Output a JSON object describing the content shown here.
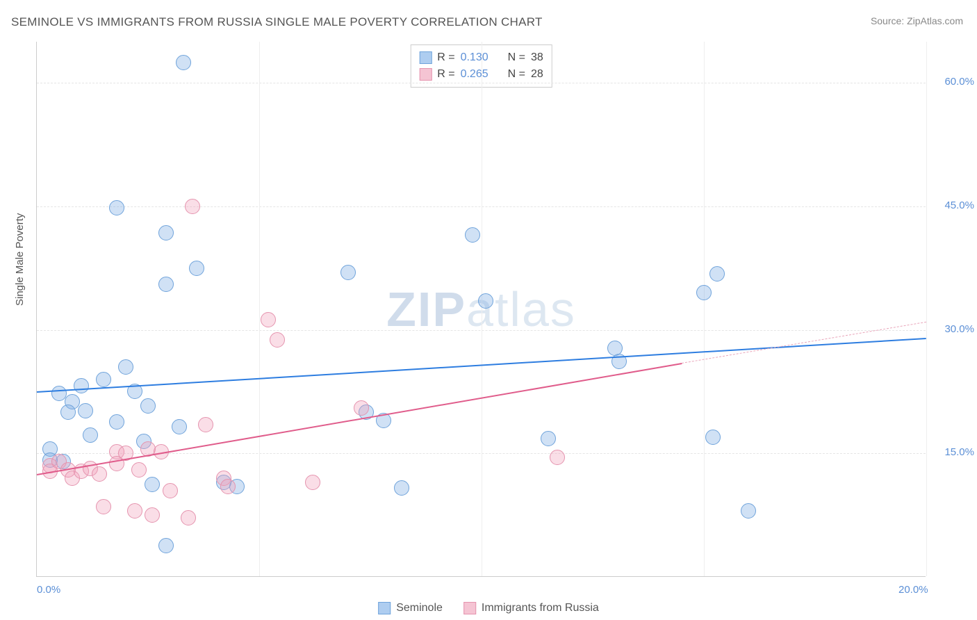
{
  "title": "SEMINOLE VS IMMIGRANTS FROM RUSSIA SINGLE MALE POVERTY CORRELATION CHART",
  "source": "Source: ZipAtlas.com",
  "y_axis_label": "Single Male Poverty",
  "watermark": {
    "bold": "ZIP",
    "rest": "atlas"
  },
  "chart": {
    "type": "scatter",
    "xlim": [
      0,
      20
    ],
    "ylim": [
      0,
      65
    ],
    "xticks": [
      {
        "value": 0,
        "label": "0.0%"
      },
      {
        "value": 20,
        "label": "20.0%"
      }
    ],
    "yticks": [
      {
        "value": 15,
        "label": "15.0%"
      },
      {
        "value": 30,
        "label": "30.0%"
      },
      {
        "value": 45,
        "label": "45.0%"
      },
      {
        "value": 60,
        "label": "60.0%"
      }
    ],
    "vgrid_steps": 5,
    "grid_color": "#e8e8e8",
    "background_color": "#ffffff",
    "marker_radius": 11,
    "marker_stroke_width": 1.5,
    "series": [
      {
        "name": "Seminole",
        "color_fill": "rgba(120, 170, 225, 0.35)",
        "color_stroke": "#6fa3db",
        "swatch_fill": "#aecdf0",
        "swatch_stroke": "#6fa3db",
        "R": "0.130",
        "N": "38",
        "trend": {
          "x1": 0,
          "y1": 22.5,
          "x2": 20,
          "y2": 29.0,
          "color": "#2d7de0",
          "width": 2.5
        },
        "points": [
          [
            3.3,
            62.5
          ],
          [
            1.8,
            44.8
          ],
          [
            2.9,
            41.8
          ],
          [
            3.6,
            37.5
          ],
          [
            2.9,
            35.5
          ],
          [
            15.3,
            36.8
          ],
          [
            15.0,
            34.5
          ],
          [
            9.8,
            41.5
          ],
          [
            7.0,
            37.0
          ],
          [
            10.1,
            33.5
          ],
          [
            0.3,
            15.5
          ],
          [
            0.3,
            14.2
          ],
          [
            0.5,
            22.3
          ],
          [
            0.8,
            21.3
          ],
          [
            0.7,
            20.0
          ],
          [
            0.6,
            14.0
          ],
          [
            1.0,
            23.2
          ],
          [
            1.1,
            20.2
          ],
          [
            1.2,
            17.2
          ],
          [
            1.5,
            24.0
          ],
          [
            1.8,
            18.8
          ],
          [
            2.0,
            25.5
          ],
          [
            2.2,
            22.5
          ],
          [
            2.4,
            16.5
          ],
          [
            2.6,
            11.2
          ],
          [
            2.5,
            20.8
          ],
          [
            2.9,
            3.8
          ],
          [
            3.2,
            18.2
          ],
          [
            4.2,
            11.5
          ],
          [
            4.5,
            11.0
          ],
          [
            7.4,
            20.0
          ],
          [
            7.8,
            19.0
          ],
          [
            8.2,
            10.8
          ],
          [
            11.5,
            16.8
          ],
          [
            13.0,
            27.8
          ],
          [
            13.1,
            26.2
          ],
          [
            15.2,
            17.0
          ],
          [
            16.0,
            8.0
          ]
        ]
      },
      {
        "name": "Immigrants from Russia",
        "color_fill": "rgba(240, 160, 185, 0.35)",
        "color_stroke": "#e593ae",
        "swatch_fill": "#f5c4d3",
        "swatch_stroke": "#e593ae",
        "R": "0.265",
        "N": "28",
        "trend": {
          "x1": 0,
          "y1": 12.5,
          "x2": 14.5,
          "y2": 26.0,
          "color": "#e05c8b",
          "width": 2.5
        },
        "trend_dashed": {
          "x1": 14.5,
          "y1": 26.0,
          "x2": 20,
          "y2": 31.0,
          "color": "#e9a5ba",
          "width": 1
        },
        "points": [
          [
            3.5,
            45.0
          ],
          [
            5.2,
            31.2
          ],
          [
            5.4,
            28.8
          ],
          [
            0.3,
            13.5
          ],
          [
            0.3,
            12.8
          ],
          [
            0.5,
            14.0
          ],
          [
            0.7,
            13.0
          ],
          [
            0.8,
            12.0
          ],
          [
            1.0,
            12.8
          ],
          [
            1.2,
            13.2
          ],
          [
            1.4,
            12.5
          ],
          [
            1.5,
            8.5
          ],
          [
            1.8,
            15.2
          ],
          [
            1.8,
            13.8
          ],
          [
            2.0,
            15.0
          ],
          [
            2.2,
            8.0
          ],
          [
            2.3,
            13.0
          ],
          [
            2.5,
            15.5
          ],
          [
            2.6,
            7.5
          ],
          [
            2.8,
            15.2
          ],
          [
            3.0,
            10.5
          ],
          [
            3.4,
            7.2
          ],
          [
            3.8,
            18.5
          ],
          [
            4.2,
            12.0
          ],
          [
            4.3,
            11.0
          ],
          [
            6.2,
            11.5
          ],
          [
            7.3,
            20.5
          ],
          [
            11.7,
            14.5
          ]
        ]
      }
    ]
  },
  "legend_top": {
    "R_label": "R =",
    "N_label": "N ="
  },
  "legend_bottom": {
    "items": [
      "Seminole",
      "Immigrants from Russia"
    ]
  }
}
